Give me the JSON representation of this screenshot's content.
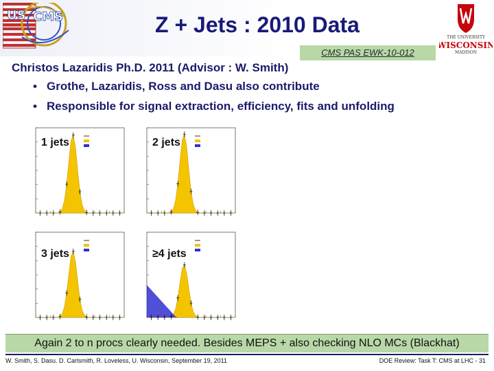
{
  "slide": {
    "title": "Z + Jets : 2010 Data",
    "pas_reference": "CMS PAS EWK-10-012",
    "author_line": "Christos Lazaridis Ph.D. 2011 (Advisor : W. Smith)",
    "bullets": [
      "Grothe, Lazaridis, Ross and Dasu also contribute",
      "Responsible for signal extraction, efficiency, fits and unfolding"
    ],
    "summary": "Again 2 to n procs clearly needed. Besides MEPS + also checking NLO MCs (Blackhat)",
    "footer_left": "W. Smith, S. Dasu. D. Carlsmith, R. Loveless, U. Wisconsin, September 19, 2011",
    "footer_right": "DOE Review: Task T: CMS at LHC - 31"
  },
  "logos": {
    "left": "us-cms-logo",
    "right": "university-of-wisconsin-madison-logo"
  },
  "colors": {
    "title": "#1a1a7a",
    "text": "#1a1a6a",
    "highlight": "#b8d8a8",
    "signal": "#f5c400",
    "background_fill": "#3030d0"
  },
  "plots": [
    {
      "label": "1 jets",
      "peak": 0.92,
      "bkg": 0.0
    },
    {
      "label": "2 jets",
      "peak": 0.93,
      "bkg": 0.0
    },
    {
      "label": "3 jets",
      "peak": 0.78,
      "bkg": 0.0
    },
    {
      "label": "≥4 jets",
      "peak": 0.62,
      "bkg": 0.38
    }
  ]
}
